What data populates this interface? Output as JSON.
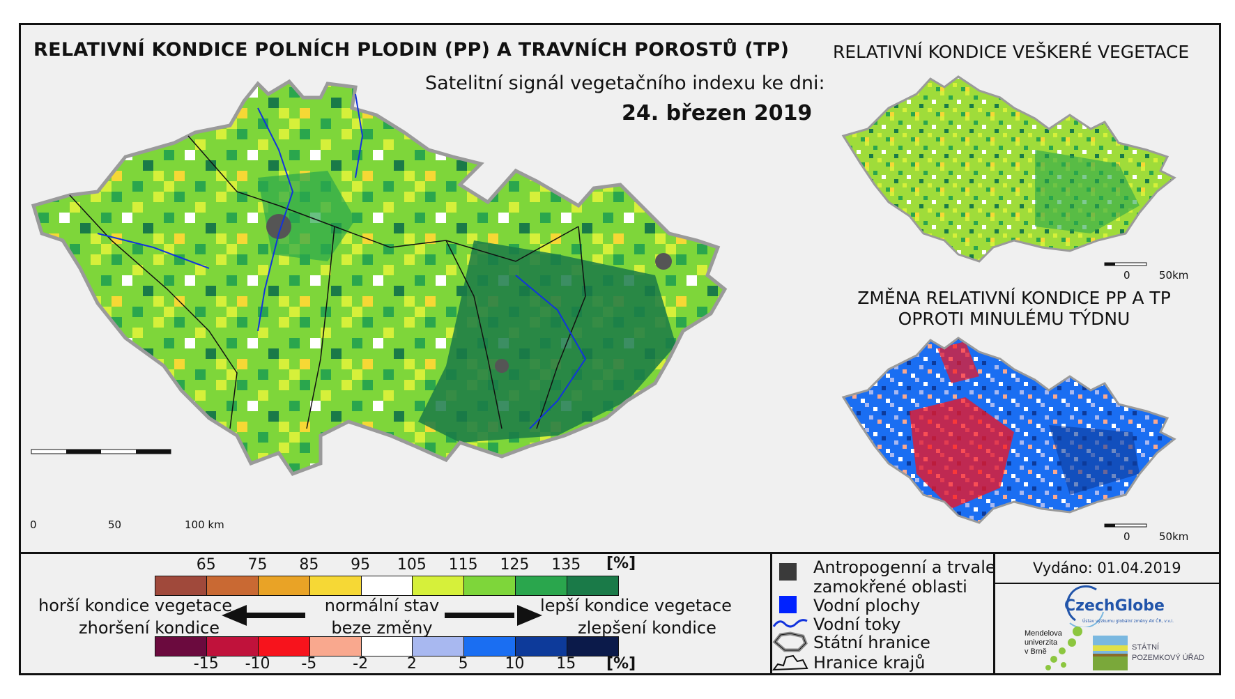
{
  "header": {
    "main_title": "RELATIVNÍ KONDICE POLNÍCH PLODIN (PP) A TRAVNÍCH POROSTŮ (TP)",
    "subtitle": "Satelitní signál vegetačního indexu ke dni:",
    "date": "24. březen 2019"
  },
  "side_maps": {
    "top_title": "RELATIVNÍ KONDICE VEŠKERÉ VEGETACE",
    "bottom_title_line1": "ZMĚNA RELATIVNÍ KONDICE PP A TP",
    "bottom_title_line2": "OPROTI MINULÉMU TÝDNU",
    "scale_start": "0",
    "scale_end": "50km"
  },
  "main_map": {
    "scale_ticks": [
      "0",
      "50",
      "100 km"
    ]
  },
  "legend": {
    "condition_unit": "[%]",
    "condition_ticks": [
      "65",
      "75",
      "85",
      "95",
      "105",
      "115",
      "125",
      "135"
    ],
    "condition_colors": [
      "#a0493b",
      "#c96933",
      "#e9a326",
      "#f6d835",
      "#ffffff",
      "#d6f03a",
      "#7ed63a",
      "#2aa64d",
      "#1a7a48"
    ],
    "change_unit": "[%]",
    "change_ticks": [
      "-15",
      "-10",
      "-5",
      "-2",
      "2",
      "5",
      "10",
      "15"
    ],
    "change_colors": [
      "#6b0a3e",
      "#c0123b",
      "#f7131c",
      "#f9a88e",
      "#ffffff",
      "#a8b8f0",
      "#1a6ef2",
      "#0d3a9a",
      "#0b1a4a"
    ],
    "worse_line1": "horší kondice vegetace",
    "worse_line2": "zhoršení kondice",
    "normal_line1": "normální stav",
    "normal_line2": "beze změny",
    "better_line1": "lepší kondice vegetace",
    "better_line2": "zlepšení kondice"
  },
  "map_legend": {
    "items": [
      {
        "label": "Antropogenní a trvale",
        "icon": "anthropogenic-area-swatch",
        "color": "#3a3a3a"
      },
      {
        "label": "zamokřené oblasti",
        "icon": "",
        "color": ""
      },
      {
        "label": "Vodní plochy",
        "icon": "water-area-swatch",
        "color": "#0022ff"
      },
      {
        "label": "Vodní toky",
        "icon": "river-line-icon",
        "color": "#1133dd"
      },
      {
        "label": "Státní hranice",
        "icon": "state-border-icon",
        "color": "#8c8c8c"
      },
      {
        "label": "Hranice krajů",
        "icon": "region-border-icon",
        "color": "#111111"
      }
    ]
  },
  "issued": {
    "label": "Vydáno: 01.04.2019"
  },
  "logos": {
    "czechglobe": "CzechGlobe",
    "czechglobe_sub": "Ústav výzkumu globální změny AV ČR, v.v.i.",
    "mendel_line1": "Mendelova",
    "mendel_line2": "univerzita",
    "mendel_line3": "v Brně",
    "spu_line1": "STÁTNÍ",
    "spu_line2": "POZEMKOVÝ ÚŘAD"
  }
}
